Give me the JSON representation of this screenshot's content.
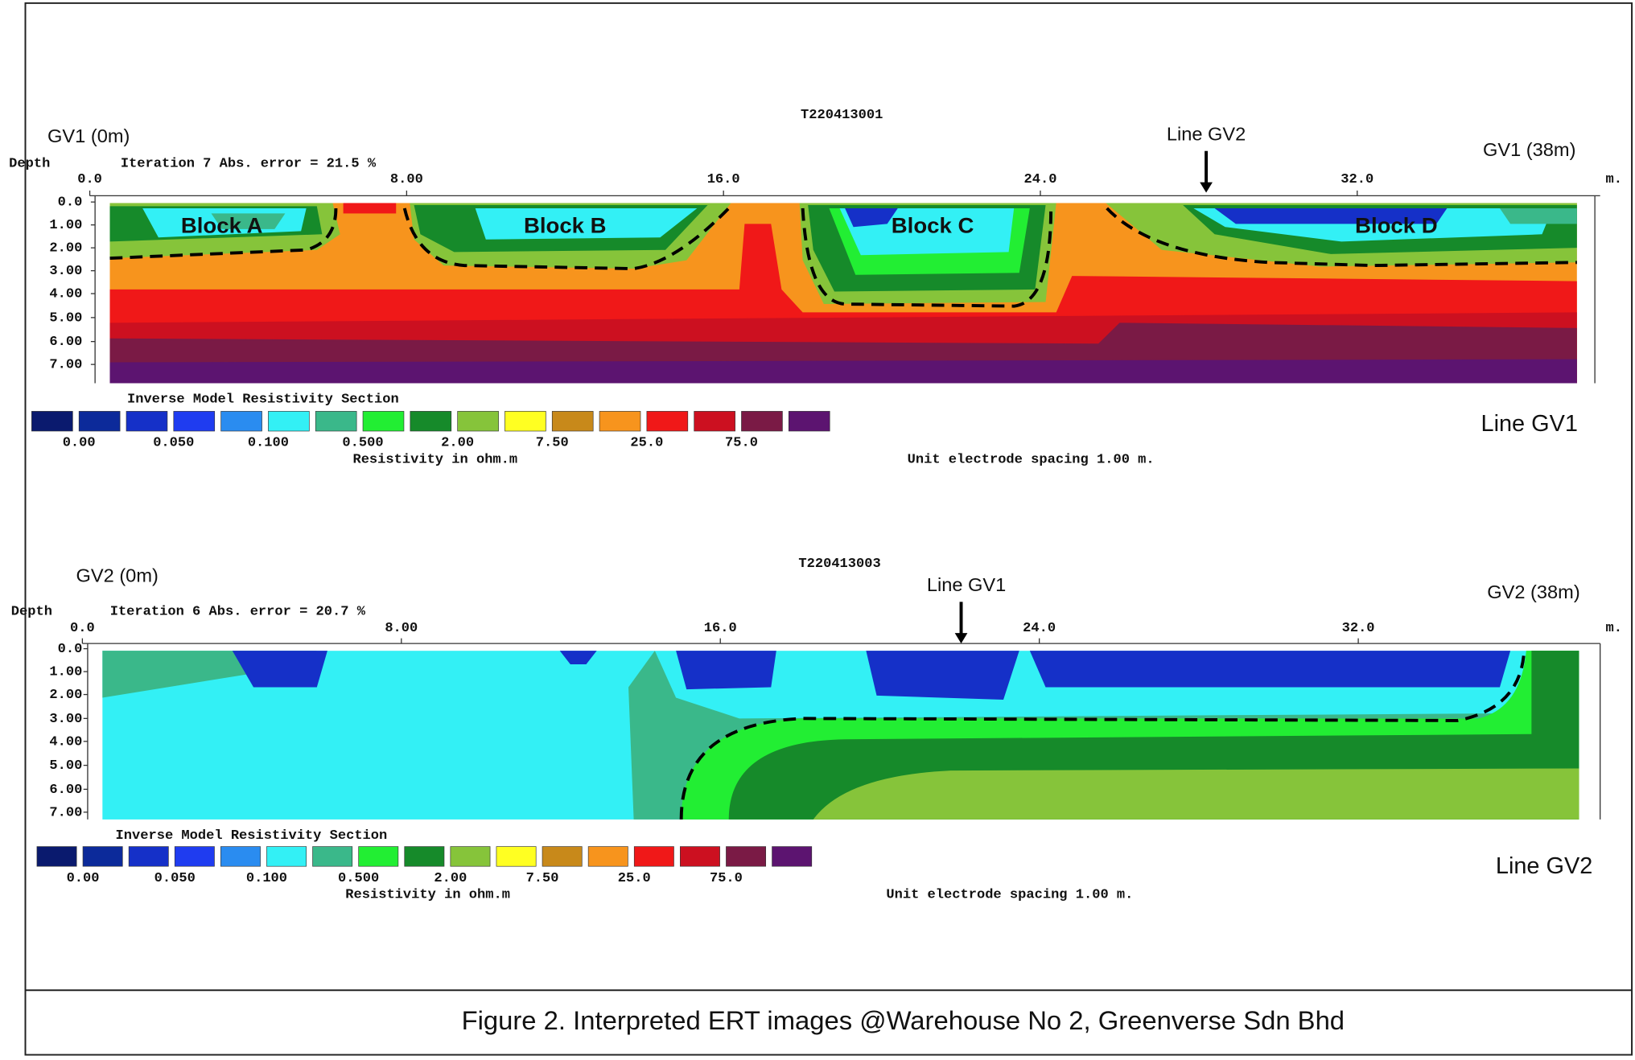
{
  "figure_caption": "Figure 2. Interpreted ERT images @Warehouse No 2, Greenverse Sdn Bhd",
  "legend_colors": [
    "#0a1a6e",
    "#0c2a9a",
    "#1530c8",
    "#1f3cf0",
    "#2a8cf0",
    "#33f0f5",
    "#3ab88a",
    "#22ee33",
    "#168a2a",
    "#86c43a",
    "#ffff22",
    "#c8891a",
    "#f7941d",
    "#f01818",
    "#cc1020",
    "#7a1a45",
    "#5c1470"
  ],
  "panels": [
    {
      "file_id": "T220413001",
      "start_label": "GV1 (0m)",
      "end_label": "GV1 (38m)",
      "crossing_label": "Line GV2",
      "depth_label": "Depth",
      "iteration_label": "Iteration 7 Abs. error = 21.5 %",
      "x_ticks": [
        "0.0",
        "8.00",
        "16.0",
        "24.0",
        "32.0"
      ],
      "x_unit": "m.",
      "depth_ticks": [
        "0.0",
        "1.00",
        "2.00",
        "3.00",
        "4.00",
        "5.00",
        "6.00",
        "7.00"
      ],
      "block_labels": [
        "Block A",
        "Block B",
        "Block C",
        "Block D"
      ],
      "section_title": "Inverse Model Resistivity Section",
      "scale_labels": [
        "0.00",
        "0.050",
        "0.100",
        "0.500",
        "2.00",
        "7.50",
        "25.0",
        "75.0"
      ],
      "scale_caption": "Resistivity in ohm.m",
      "spacing_note": "Unit electrode spacing 1.00 m.",
      "line_label": "Line GV1"
    },
    {
      "file_id": "T220413003",
      "start_label": "GV2 (0m)",
      "end_label": "GV2 (38m)",
      "crossing_label": "Line GV1",
      "depth_label": "Depth",
      "iteration_label": "Iteration 6 Abs. error = 20.7 %",
      "x_ticks": [
        "0.0",
        "8.00",
        "16.0",
        "24.0",
        "32.0"
      ],
      "x_unit": "m.",
      "depth_ticks": [
        "0.0",
        "1.00",
        "2.00",
        "3.00",
        "4.00",
        "5.00",
        "6.00",
        "7.00"
      ],
      "section_title": "Inverse Model Resistivity Section",
      "scale_labels": [
        "0.00",
        "0.050",
        "0.100",
        "0.500",
        "2.00",
        "7.50",
        "25.0",
        "75.0"
      ],
      "scale_caption": "Resistivity in ohm.m",
      "spacing_note": "Unit electrode spacing 1.00 m.",
      "line_label": "Line GV2"
    }
  ]
}
